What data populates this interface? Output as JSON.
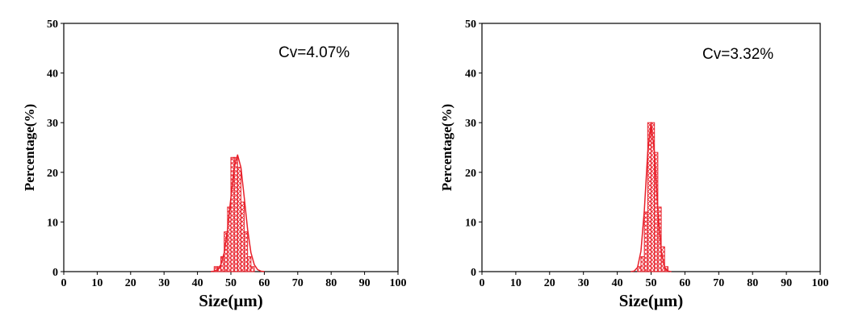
{
  "chart_data": [
    {
      "type": "histogram",
      "annotation": "Cv=4.07%",
      "xlabel": "Size(μm)",
      "ylabel": "Percentage(%)",
      "bins": [
        45,
        46,
        47,
        48,
        49,
        50,
        51,
        52,
        53,
        54,
        55,
        56,
        57
      ],
      "values": [
        1,
        1,
        3,
        8,
        13,
        23,
        23,
        21,
        14,
        8,
        3,
        1
      ],
      "curve_x": [
        44,
        45,
        46,
        47,
        48,
        49,
        50,
        51,
        52,
        53,
        54,
        55,
        56,
        57,
        58,
        59,
        60
      ],
      "curve_values": [
        0.02,
        0.09,
        0.4,
        1.4,
        3.8,
        8.5,
        14.9,
        21.0,
        23.5,
        21.0,
        14.9,
        8.5,
        3.8,
        1.4,
        0.4,
        0.09,
        0.02
      ],
      "color": "#e8202a",
      "xlim": [
        0,
        100
      ],
      "ylim": [
        0,
        50
      ],
      "xticks": [
        0,
        10,
        20,
        30,
        40,
        50,
        60,
        70,
        80,
        90,
        100
      ],
      "yticks": [
        0,
        10,
        20,
        30,
        40,
        50
      ]
    },
    {
      "type": "histogram",
      "annotation": "Cv=3.32%",
      "xlabel": "Size(μm)",
      "ylabel": "Percentage(%)",
      "bins": [
        46,
        47,
        48,
        49,
        50,
        51,
        52,
        53,
        54,
        55
      ],
      "values": [
        1,
        3,
        12,
        30,
        30,
        24,
        13,
        5,
        1
      ],
      "curve_x": [
        44,
        45,
        46,
        47,
        48,
        49,
        50,
        51,
        52,
        53,
        54,
        55,
        56
      ],
      "curve_values": [
        0.01,
        0.11,
        0.85,
        4.1,
        12.3,
        24.0,
        30,
        24.0,
        12.3,
        4.1,
        0.85,
        0.11,
        0.01
      ],
      "color": "#e8202a",
      "xlim": [
        0,
        100
      ],
      "ylim": [
        0,
        50
      ],
      "xticks": [
        0,
        10,
        20,
        30,
        40,
        50,
        60,
        70,
        80,
        90,
        100
      ],
      "yticks": [
        0,
        10,
        20,
        30,
        40,
        50
      ]
    }
  ]
}
